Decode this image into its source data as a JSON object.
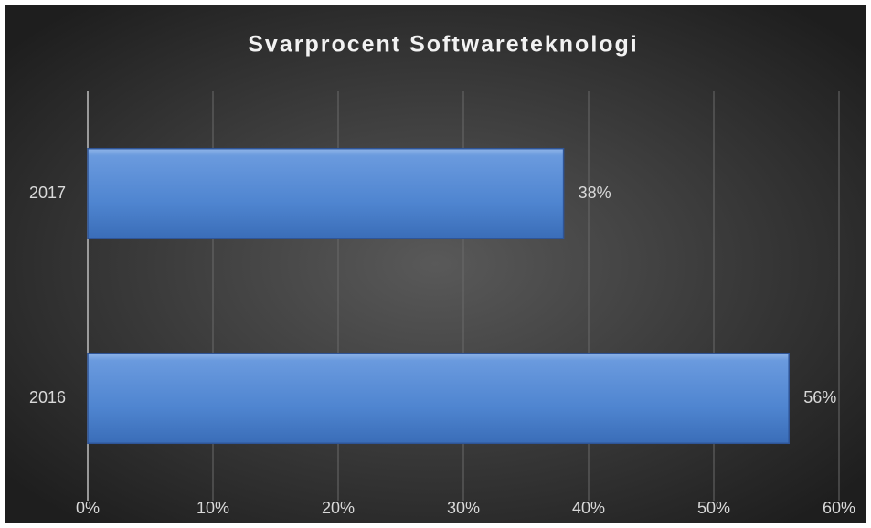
{
  "chart_data": {
    "type": "bar",
    "orientation": "horizontal",
    "title": "Svarprocent Softwareteknologi",
    "categories": [
      "2017",
      "2016"
    ],
    "values": [
      38,
      56
    ],
    "value_labels": [
      "38%",
      "56%"
    ],
    "color": "#4a7fcb",
    "xlim": [
      0,
      60
    ],
    "xticks": [
      {
        "value": 0,
        "label": "0%"
      },
      {
        "value": 10,
        "label": "10%"
      },
      {
        "value": 20,
        "label": "20%"
      },
      {
        "value": 30,
        "label": "30%"
      },
      {
        "value": 40,
        "label": "40%"
      },
      {
        "value": 50,
        "label": "50%"
      },
      {
        "value": 60,
        "label": "60%"
      }
    ],
    "grid": true
  }
}
